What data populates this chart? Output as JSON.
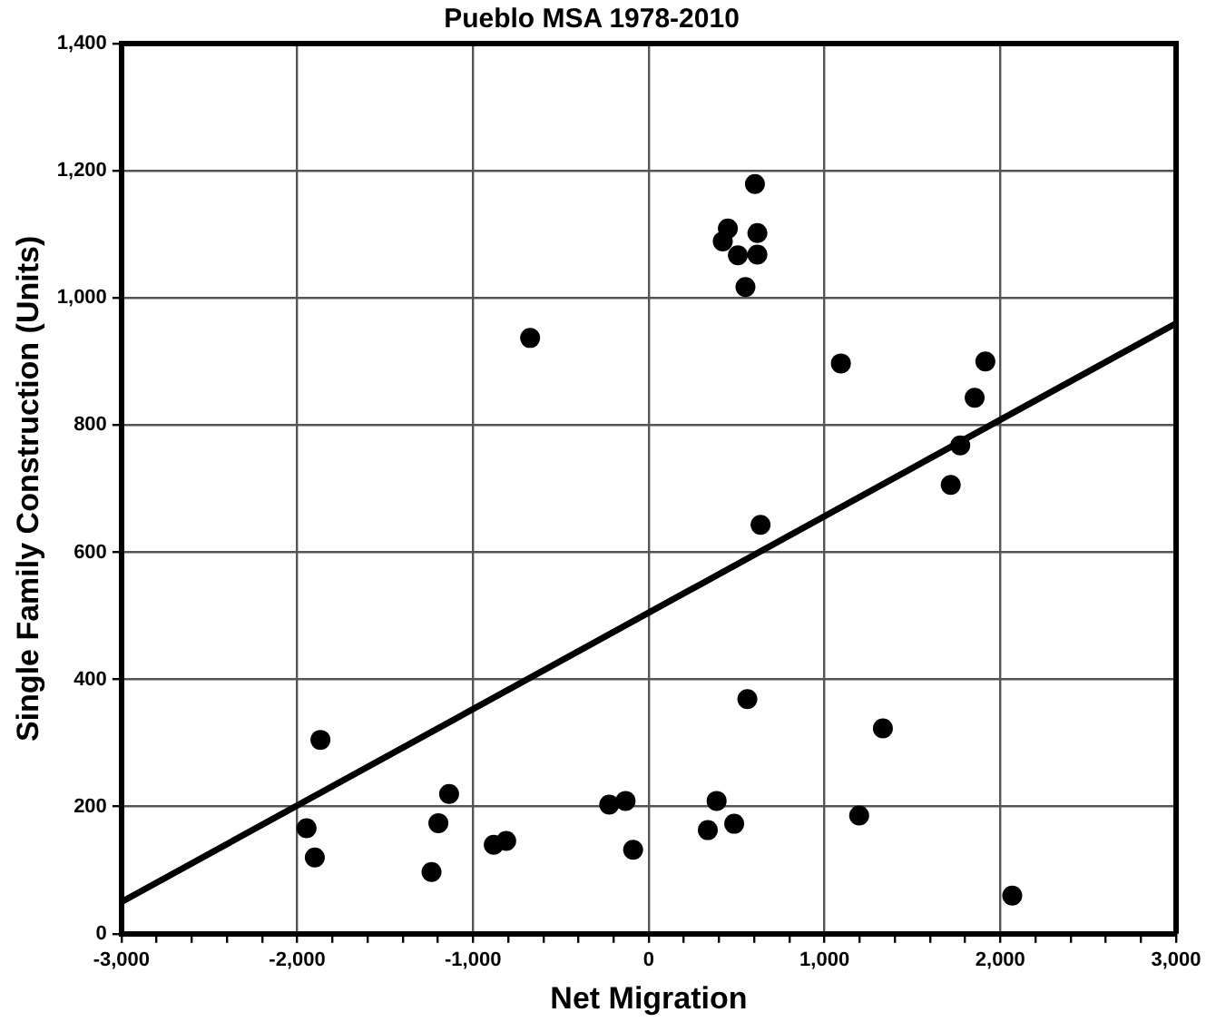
{
  "chart_data": {
    "type": "scatter",
    "title": "Pueblo MSA 1978-2010",
    "xlabel": "Net Migration",
    "ylabel": "Single Family Construction (Units)",
    "xlim": [
      -3000,
      3000
    ],
    "xticks": [
      {
        "value": -3000,
        "label": "-3,000"
      },
      {
        "value": -2800,
        "label": null
      },
      {
        "value": -2600,
        "label": null
      },
      {
        "value": -2400,
        "label": null
      },
      {
        "value": -2200,
        "label": null
      },
      {
        "value": -2000,
        "label": "-2,000"
      },
      {
        "value": -1800,
        "label": null
      },
      {
        "value": -1600,
        "label": null
      },
      {
        "value": -1400,
        "label": null
      },
      {
        "value": -1200,
        "label": null
      },
      {
        "value": -1000,
        "label": "-1,000"
      },
      {
        "value": -800,
        "label": null
      },
      {
        "value": -600,
        "label": null
      },
      {
        "value": -400,
        "label": null
      },
      {
        "value": -200,
        "label": null
      },
      {
        "value": 0,
        "label": "0"
      },
      {
        "value": 200,
        "label": null
      },
      {
        "value": 400,
        "label": null
      },
      {
        "value": 600,
        "label": null
      },
      {
        "value": 800,
        "label": null
      },
      {
        "value": 1000,
        "label": "1,000"
      },
      {
        "value": 1200,
        "label": null
      },
      {
        "value": 1400,
        "label": null
      },
      {
        "value": 1600,
        "label": null
      },
      {
        "value": 1800,
        "label": null
      },
      {
        "value": 2000,
        "label": "2,000"
      },
      {
        "value": 2200,
        "label": null
      },
      {
        "value": 2400,
        "label": null
      },
      {
        "value": 2600,
        "label": null
      },
      {
        "value": 2800,
        "label": null
      },
      {
        "value": 3000,
        "label": "3,000"
      }
    ],
    "ylim": [
      0,
      1400
    ],
    "yticks": [
      0,
      200,
      400,
      600,
      800,
      {
        "value": 1000,
        "label": "1,000"
      },
      {
        "value": 1200,
        "label": "1,200"
      },
      {
        "value": 1400,
        "label": "1,400"
      }
    ],
    "grid": true,
    "series": [
      {
        "color": "#000000",
        "marker": "circle",
        "x": [
          -1868,
          -1947,
          -1900,
          -1136,
          -1197,
          -1236,
          -882,
          -811,
          -225,
          -132,
          -89,
          561,
          1332,
          386,
          336,
          486,
          1197,
          2068,
          604,
          450,
          421,
          618,
          507,
          618,
          550,
          1093,
          1915,
          1854,
          -675,
          1772,
          1718,
          636
        ],
        "values": [
          305,
          166,
          120,
          220,
          174,
          97,
          140,
          146,
          203,
          209,
          132,
          369,
          323,
          209,
          163,
          173,
          186,
          60,
          1179,
          1109,
          1089,
          1102,
          1067,
          1068,
          1017,
          897,
          900,
          843,
          937,
          768,
          706,
          643
        ]
      },
      {
        "type": "line",
        "color": "#000000",
        "marker": "none",
        "line_style": "solid",
        "x": [
          -3000,
          3000
        ],
        "values": [
          50,
          960
        ]
      }
    ]
  }
}
